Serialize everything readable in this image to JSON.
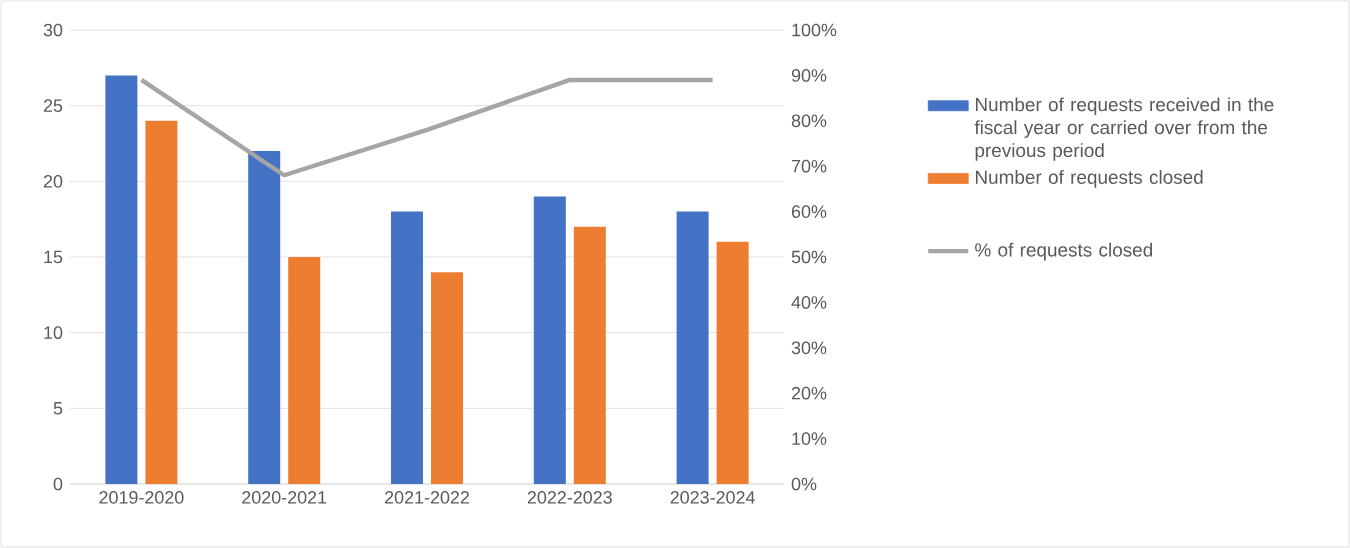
{
  "chart_data": {
    "type": "bar",
    "categories": [
      "2019-2020",
      "2020-2021",
      "2021-2022",
      "2022-2023",
      "2023-2024"
    ],
    "series": [
      {
        "name": "Number of requests received in the fiscal year or carried over from the previous period",
        "color": "#4472c4",
        "values": [
          27,
          22,
          18,
          19,
          18
        ]
      },
      {
        "name": "Number of requests closed",
        "color": "#ed7d31",
        "values": [
          24,
          15,
          14,
          17,
          16
        ]
      },
      {
        "name": "%  of requests closed",
        "type": "line",
        "axis": "y2",
        "color": "#a5a5a5",
        "values": [
          89,
          68,
          78,
          89,
          89
        ]
      }
    ],
    "ylim": [
      0,
      30
    ],
    "yticks": [
      0,
      5,
      10,
      15,
      20,
      25,
      30
    ],
    "y2lim": [
      0,
      100
    ],
    "y2ticks": [
      {
        "value": 0,
        "label": "0%"
      },
      {
        "value": 10,
        "label": "10%"
      },
      {
        "value": 20,
        "label": "20%"
      },
      {
        "value": 30,
        "label": "30%"
      },
      {
        "value": 40,
        "label": "40%"
      },
      {
        "value": 50,
        "label": "50%"
      },
      {
        "value": 60,
        "label": "60%"
      },
      {
        "value": 70,
        "label": "70%"
      },
      {
        "value": 80,
        "label": "80%"
      },
      {
        "value": 90,
        "label": "90%"
      },
      {
        "value": 100,
        "label": "100%"
      }
    ],
    "grid": "y",
    "legend": "right"
  }
}
